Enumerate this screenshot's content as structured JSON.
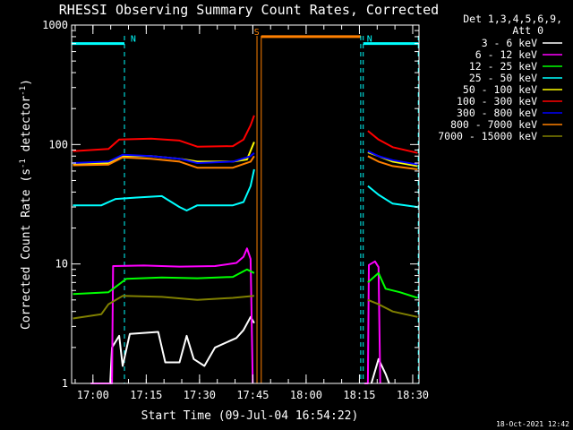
{
  "chart_data": {
    "type": "line",
    "title": "RHESSI Observing Summary Count Rates, Corrected",
    "xlabel": "Start Time (09-Jul-04 16:54:22)",
    "ylabel_main": "Corrected Count Rate (s",
    "ylabel_sup1": "-1",
    "ylabel_mid": " detector",
    "ylabel_sup2": "-1",
    "ylabel_end": ")",
    "y_scale": "log",
    "ylim": [
      1,
      1000
    ],
    "xlim_minutes": [
      -0.37,
      97.4
    ],
    "x_ticks": [
      {
        "label": "17:00",
        "value": 5.63
      },
      {
        "label": "17:15",
        "value": 20.63
      },
      {
        "label": "17:30",
        "value": 35.63
      },
      {
        "label": "17:45",
        "value": 50.63
      },
      {
        "label": "18:00",
        "value": 65.63
      },
      {
        "label": "18:15",
        "value": 80.63
      },
      {
        "label": "18:30",
        "value": 95.63
      }
    ],
    "y_ticks": [
      {
        "label": "1",
        "value": 1
      },
      {
        "label": "10",
        "value": 10
      },
      {
        "label": "100",
        "value": 100
      },
      {
        "label": "1000",
        "value": 1000
      }
    ],
    "legend_header": [
      "Det 1,3,4,5,6,9,",
      "Att 0"
    ],
    "legend_placement": "right",
    "series": [
      {
        "name": "3 - 6 keV",
        "color": "#ffffff",
        "segments": [
          [
            [
              5,
              1
            ],
            [
              10.5,
              1
            ],
            [
              11,
              2
            ],
            [
              13,
              2.5
            ],
            [
              14,
              1.4
            ],
            [
              16,
              2.6
            ],
            [
              24,
              2.7
            ],
            [
              26,
              1.5
            ],
            [
              30,
              1.5
            ],
            [
              32,
              2.5
            ],
            [
              34,
              1.6
            ],
            [
              37,
              1.4
            ],
            [
              40,
              2.0
            ],
            [
              46,
              2.4
            ],
            [
              48,
              2.8
            ],
            [
              50,
              3.6
            ],
            [
              51,
              3.2
            ]
          ],
          [
            [
              84,
              1
            ],
            [
              86,
              1.6
            ],
            [
              88,
              1.2
            ],
            [
              89,
              1
            ]
          ]
        ]
      },
      {
        "name": "6 - 12 keV",
        "color": "#ff00ff",
        "segments": [
          [
            [
              5,
              1
            ],
            [
              11,
              1
            ],
            [
              11.3,
              9.6
            ],
            [
              20,
              9.7
            ],
            [
              30,
              9.5
            ],
            [
              40,
              9.6
            ],
            [
              46,
              10.2
            ],
            [
              48,
              11.5
            ],
            [
              49,
              13.5
            ],
            [
              50,
              11
            ],
            [
              50.6,
              1
            ]
          ],
          [
            [
              82,
              1
            ],
            [
              83,
              1
            ],
            [
              83.3,
              9.8
            ],
            [
              85,
              10.5
            ],
            [
              86,
              9.4
            ],
            [
              86.5,
              1
            ]
          ]
        ]
      },
      {
        "name": "12 - 25 keV",
        "color": "#00ff00",
        "segments": [
          [
            [
              0,
              5.6
            ],
            [
              10,
              5.8
            ],
            [
              15,
              7.5
            ],
            [
              25,
              7.7
            ],
            [
              35,
              7.6
            ],
            [
              45,
              7.8
            ],
            [
              49,
              9.0
            ],
            [
              51,
              8.4
            ]
          ],
          [
            [
              83,
              7.0
            ],
            [
              86,
              8.4
            ],
            [
              88,
              6.2
            ],
            [
              92,
              5.8
            ],
            [
              97,
              5.2
            ]
          ]
        ]
      },
      {
        "name": "25 - 50 keV",
        "color": "#00ffff",
        "segments": [
          [
            [
              0,
              31
            ],
            [
              8,
              31
            ],
            [
              12,
              35
            ],
            [
              18,
              36
            ],
            [
              25,
              37
            ],
            [
              30,
              30
            ],
            [
              32,
              28
            ],
            [
              35,
              31
            ],
            [
              45,
              31
            ],
            [
              48,
              33
            ],
            [
              50,
              45
            ],
            [
              51,
              62
            ]
          ],
          [
            [
              83,
              45
            ],
            [
              86,
              38
            ],
            [
              90,
              32
            ],
            [
              97,
              30
            ]
          ]
        ]
      },
      {
        "name": "50 - 100 keV",
        "color": "#ffff00",
        "segments": [
          [
            [
              0,
              68
            ],
            [
              10,
              70
            ],
            [
              14,
              80
            ],
            [
              22,
              80
            ],
            [
              30,
              76
            ],
            [
              35,
              72
            ],
            [
              45,
              72
            ],
            [
              49,
              75
            ],
            [
              51,
              105
            ]
          ],
          [
            [
              83,
              86
            ],
            [
              86,
              80
            ],
            [
              90,
              72
            ],
            [
              97,
              66
            ]
          ]
        ]
      },
      {
        "name": "100 - 300 keV",
        "color": "#ff0000",
        "segments": [
          [
            [
              0,
              88
            ],
            [
              10,
              92
            ],
            [
              13,
              110
            ],
            [
              22,
              112
            ],
            [
              30,
              108
            ],
            [
              35,
              96
            ],
            [
              45,
              97
            ],
            [
              48,
              110
            ],
            [
              50,
              145
            ],
            [
              51,
              175
            ]
          ],
          [
            [
              83,
              130
            ],
            [
              86,
              110
            ],
            [
              90,
              95
            ],
            [
              97,
              85
            ]
          ]
        ]
      },
      {
        "name": "300 - 800 keV",
        "color": "#0000ff",
        "segments": [
          [
            [
              0,
              70
            ],
            [
              10,
              72
            ],
            [
              14,
              82
            ],
            [
              22,
              80
            ],
            [
              30,
              76
            ],
            [
              35,
              70
            ],
            [
              45,
              72
            ],
            [
              50,
              80
            ],
            [
              51,
              85
            ]
          ],
          [
            [
              83,
              88
            ],
            [
              86,
              80
            ],
            [
              90,
              74
            ],
            [
              97,
              68
            ]
          ]
        ]
      },
      {
        "name": "800 - 7000 keV",
        "color": "#ff8000",
        "segments": [
          [
            [
              0,
              67
            ],
            [
              10,
              68
            ],
            [
              14,
              78
            ],
            [
              22,
              76
            ],
            [
              30,
              72
            ],
            [
              35,
              64
            ],
            [
              45,
              64
            ],
            [
              50,
              72
            ],
            [
              51,
              80
            ]
          ],
          [
            [
              83,
              80
            ],
            [
              86,
              72
            ],
            [
              90,
              66
            ],
            [
              97,
              62
            ]
          ]
        ]
      },
      {
        "name": "7000 - 15000 keV",
        "color": "#808000",
        "segments": [
          [
            [
              0,
              3.5
            ],
            [
              8,
              3.8
            ],
            [
              10,
              4.6
            ],
            [
              14,
              5.4
            ],
            [
              25,
              5.3
            ],
            [
              35,
              5.0
            ],
            [
              45,
              5.2
            ],
            [
              51,
              5.4
            ]
          ],
          [
            [
              83,
              5.0
            ],
            [
              86,
              4.6
            ],
            [
              90,
              4.0
            ],
            [
              97,
              3.6
            ]
          ]
        ]
      }
    ],
    "annotations": [
      {
        "label": "N",
        "color": "#00ffff",
        "x_start": -0.4,
        "x_end": 14.5,
        "level": 700
      },
      {
        "label": "N",
        "color": "#00ffff",
        "x_start": 81.7,
        "x_end": 97.2,
        "level": 700
      },
      {
        "label": "S",
        "color": "#ff8000",
        "x_start": 53.0,
        "x_end": 81.0,
        "level": 800
      }
    ],
    "vertical_lines": [
      {
        "x": 14.5,
        "color": "#00ffff",
        "style": "dashed"
      },
      {
        "x": 51.8,
        "color": "#ff8000",
        "style": "solid"
      },
      {
        "x": 53.0,
        "color": "#ff8000",
        "style": "solid"
      },
      {
        "x": 81.0,
        "color": "#00ffff",
        "style": "dashed"
      },
      {
        "x": 81.7,
        "color": "#00ffff",
        "style": "dashed"
      },
      {
        "x": 97.2,
        "color": "#00ffff",
        "style": "dashed"
      }
    ],
    "footer_date": "18-Oct-2021 12:42"
  }
}
